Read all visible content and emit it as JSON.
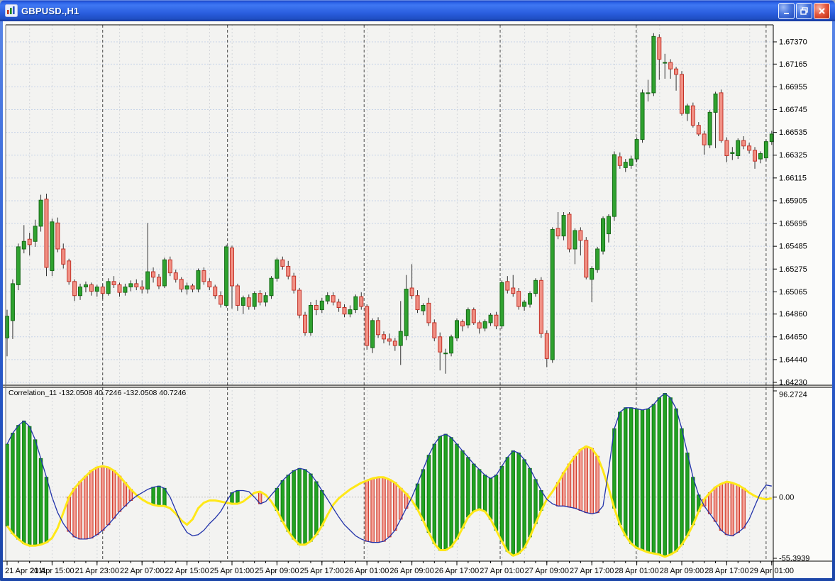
{
  "window": {
    "title": "GBPUSD.,H1",
    "controls": {
      "minimize": "minimize",
      "maximize": "restore",
      "close": "close"
    }
  },
  "colors": {
    "plot_bg": "#f3f3f1",
    "axis_bg": "#fbfbf9",
    "grid_h": "#c7d3e8",
    "grid_v": "#d3d6da",
    "day_separator": "#474747",
    "candle_up_fill": "#2fa22f",
    "candle_up_stroke": "#156915",
    "candle_down_fill": "#f19084",
    "candle_down_stroke": "#c43328",
    "wick": "#333333",
    "ind_up_fill": "#22a322",
    "ind_up_stroke": "#0e7d0e",
    "ind_down_fill": "#f4a096",
    "ind_down_stroke": "#cc3322",
    "line_yellow": "#ffe818",
    "line_blue": "#2233aa",
    "axis_text": "#000000"
  },
  "main_chart": {
    "price_axis_labels": [
      "1.67370",
      "1.67165",
      "1.66955",
      "1.66745",
      "1.66535",
      "1.66325",
      "1.66115",
      "1.65905",
      "1.65695",
      "1.65485",
      "1.65275",
      "1.65065",
      "1.64860",
      "1.64650",
      "1.64440",
      "1.64230"
    ],
    "time_axis_labels": [
      "21 Apr 2011",
      "21 Apr 15:00",
      "21 Apr 23:00",
      "22 Apr 07:00",
      "22 Apr 15:00",
      "25 Apr 01:00",
      "25 Apr 09:00",
      "25 Apr 17:00",
      "26 Apr 01:00",
      "26 Apr 09:00",
      "26 Apr 17:00",
      "27 Apr 01:00",
      "27 Apr 09:00",
      "27 Apr 17:00",
      "28 Apr 01:00",
      "28 Apr 09:00",
      "28 Apr 17:00",
      "29 Apr 01:00"
    ],
    "day_separator_bars": [
      17,
      39.2,
      63.5,
      87.7,
      111.9,
      135
    ],
    "candles": [
      [
        1.6464,
        1.649,
        1.6447,
        1.6484
      ],
      [
        1.648,
        1.6518,
        1.6463,
        1.6514
      ],
      [
        1.6513,
        1.6551,
        1.6508,
        1.6548
      ],
      [
        1.6546,
        1.6568,
        1.6542,
        1.6553
      ],
      [
        1.6555,
        1.6561,
        1.654,
        1.655
      ],
      [
        1.6553,
        1.6573,
        1.6548,
        1.6567
      ],
      [
        1.6567,
        1.6596,
        1.6562,
        1.6591
      ],
      [
        1.6592,
        1.6597,
        1.6521,
        1.6529
      ],
      [
        1.6526,
        1.6574,
        1.6521,
        1.6571
      ],
      [
        1.657,
        1.6575,
        1.6543,
        1.6546
      ],
      [
        1.6546,
        1.6551,
        1.6528,
        1.6532
      ],
      [
        1.6535,
        1.6537,
        1.6513,
        1.6516
      ],
      [
        1.6516,
        1.6518,
        1.6498,
        1.6503
      ],
      [
        1.6503,
        1.6514,
        1.6499,
        1.6511
      ],
      [
        1.6511,
        1.6516,
        1.6506,
        1.6513
      ],
      [
        1.6513,
        1.6515,
        1.6503,
        1.6507
      ],
      [
        1.6507,
        1.6513,
        1.6502,
        1.6511
      ],
      [
        1.6511,
        1.6514,
        1.65,
        1.6505
      ],
      [
        1.6505,
        1.6519,
        1.6503,
        1.6516
      ],
      [
        1.6516,
        1.6521,
        1.651,
        1.6513
      ],
      [
        1.6513,
        1.6515,
        1.6502,
        1.6506
      ],
      [
        1.6506,
        1.6514,
        1.6503,
        1.6511
      ],
      [
        1.6511,
        1.6517,
        1.6507,
        1.6514
      ],
      [
        1.6514,
        1.6518,
        1.6508,
        1.6511
      ],
      [
        1.6511,
        1.6517,
        1.6505,
        1.6509
      ],
      [
        1.6509,
        1.657,
        1.6505,
        1.6525
      ],
      [
        1.6525,
        1.6529,
        1.6515,
        1.652
      ],
      [
        1.652,
        1.6523,
        1.6509,
        1.6512
      ],
      [
        1.6512,
        1.6538,
        1.651,
        1.6536
      ],
      [
        1.6536,
        1.6539,
        1.6521,
        1.6524
      ],
      [
        1.6524,
        1.6527,
        1.6515,
        1.6518
      ],
      [
        1.6518,
        1.652,
        1.6506,
        1.6509
      ],
      [
        1.6509,
        1.6515,
        1.6504,
        1.6512
      ],
      [
        1.6512,
        1.6514,
        1.6506,
        1.6509
      ],
      [
        1.6509,
        1.6528,
        1.6506,
        1.6526
      ],
      [
        1.6526,
        1.6529,
        1.6513,
        1.6516
      ],
      [
        1.6516,
        1.6519,
        1.6508,
        1.6511
      ],
      [
        1.6511,
        1.6513,
        1.65,
        1.6503
      ],
      [
        1.6503,
        1.6507,
        1.6492,
        1.6495
      ],
      [
        1.6494,
        1.655,
        1.6492,
        1.6548
      ],
      [
        1.6547,
        1.6549,
        1.6491,
        1.6512
      ],
      [
        1.6512,
        1.6514,
        1.6489,
        1.6494
      ],
      [
        1.6494,
        1.6503,
        1.6486,
        1.6501
      ],
      [
        1.6501,
        1.6504,
        1.649,
        1.6493
      ],
      [
        1.6493,
        1.6507,
        1.649,
        1.6505
      ],
      [
        1.6505,
        1.6508,
        1.6494,
        1.6497
      ],
      [
        1.6497,
        1.6506,
        1.6493,
        1.6503
      ],
      [
        1.6503,
        1.6521,
        1.65,
        1.6519
      ],
      [
        1.6519,
        1.6538,
        1.6516,
        1.6536
      ],
      [
        1.6536,
        1.6539,
        1.6527,
        1.653
      ],
      [
        1.653,
        1.6535,
        1.6518,
        1.6521
      ],
      [
        1.6521,
        1.6524,
        1.6505,
        1.6508
      ],
      [
        1.6508,
        1.651,
        1.6482,
        1.6485
      ],
      [
        1.6485,
        1.6488,
        1.6466,
        1.6469
      ],
      [
        1.6469,
        1.6497,
        1.6466,
        1.6494
      ],
      [
        1.6494,
        1.6499,
        1.6485,
        1.649
      ],
      [
        1.649,
        1.6501,
        1.6487,
        1.6498
      ],
      [
        1.6498,
        1.6506,
        1.6495,
        1.6503
      ],
      [
        1.6503,
        1.6506,
        1.6494,
        1.6497
      ],
      [
        1.6497,
        1.65,
        1.6488,
        1.6492
      ],
      [
        1.6492,
        1.6495,
        1.6483,
        1.6486
      ],
      [
        1.6486,
        1.6494,
        1.6483,
        1.649
      ],
      [
        1.649,
        1.6504,
        1.6487,
        1.6502
      ],
      [
        1.6502,
        1.6506,
        1.649,
        1.6493
      ],
      [
        1.6493,
        1.6495,
        1.6453,
        1.6457
      ],
      [
        1.6455,
        1.6482,
        1.645,
        1.648
      ],
      [
        1.648,
        1.6483,
        1.6464,
        1.6467
      ],
      [
        1.6467,
        1.647,
        1.6459,
        1.6463
      ],
      [
        1.6463,
        1.6468,
        1.6457,
        1.6461
      ],
      [
        1.6461,
        1.6464,
        1.6452,
        1.6457
      ],
      [
        1.6457,
        1.6498,
        1.6439,
        1.647
      ],
      [
        1.6466,
        1.6522,
        1.6462,
        1.6509
      ],
      [
        1.651,
        1.6532,
        1.65,
        1.6503
      ],
      [
        1.6503,
        1.6508,
        1.6487,
        1.649
      ],
      [
        1.6489,
        1.6496,
        1.6485,
        1.6494
      ],
      [
        1.6496,
        1.6501,
        1.6475,
        1.6478
      ],
      [
        1.6478,
        1.6481,
        1.6461,
        1.6464
      ],
      [
        1.6465,
        1.6469,
        1.6434,
        1.6451
      ],
      [
        1.645,
        1.6454,
        1.6431,
        1.645
      ],
      [
        1.645,
        1.6467,
        1.6447,
        1.6465
      ],
      [
        1.6464,
        1.6482,
        1.6461,
        1.648
      ],
      [
        1.6479,
        1.6481,
        1.647,
        1.6475
      ],
      [
        1.6476,
        1.6492,
        1.6473,
        1.649
      ],
      [
        1.649,
        1.6492,
        1.6476,
        1.6478
      ],
      [
        1.6478,
        1.648,
        1.6468,
        1.6473
      ],
      [
        1.6473,
        1.6481,
        1.647,
        1.6479
      ],
      [
        1.6478,
        1.6487,
        1.6475,
        1.6485
      ],
      [
        1.6485,
        1.6488,
        1.6472,
        1.6475
      ],
      [
        1.6475,
        1.6517,
        1.6472,
        1.6515
      ],
      [
        1.6516,
        1.6521,
        1.6505,
        1.6508
      ],
      [
        1.651,
        1.6522,
        1.6502,
        1.6505
      ],
      [
        1.6507,
        1.651,
        1.649,
        1.6493
      ],
      [
        1.6493,
        1.6499,
        1.6489,
        1.6497
      ],
      [
        1.6495,
        1.6507,
        1.6492,
        1.6505
      ],
      [
        1.6505,
        1.6519,
        1.6502,
        1.6517
      ],
      [
        1.6517,
        1.652,
        1.6464,
        1.6468
      ],
      [
        1.6468,
        1.6471,
        1.6437,
        1.6445
      ],
      [
        1.6444,
        1.6566,
        1.6441,
        1.6564
      ],
      [
        1.6565,
        1.658,
        1.6555,
        1.6558
      ],
      [
        1.6558,
        1.658,
        1.6554,
        1.6577
      ],
      [
        1.6578,
        1.658,
        1.6543,
        1.6546
      ],
      [
        1.6546,
        1.6565,
        1.6532,
        1.6563
      ],
      [
        1.6563,
        1.6566,
        1.654,
        1.6554
      ],
      [
        1.6554,
        1.6557,
        1.6518,
        1.652
      ],
      [
        1.6518,
        1.653,
        1.6497,
        1.6528
      ],
      [
        1.6527,
        1.6548,
        1.6524,
        1.6546
      ],
      [
        1.6544,
        1.6576,
        1.6541,
        1.6574
      ],
      [
        1.656,
        1.6578,
        1.6552,
        1.6576
      ],
      [
        1.6576,
        1.6636,
        1.6572,
        1.6633
      ],
      [
        1.6631,
        1.6635,
        1.662,
        1.6623
      ],
      [
        1.6621,
        1.6629,
        1.6617,
        1.6626
      ],
      [
        1.6623,
        1.6632,
        1.662,
        1.6629
      ],
      [
        1.6629,
        1.6649,
        1.6626,
        1.6647
      ],
      [
        1.6647,
        1.6693,
        1.6644,
        1.669
      ],
      [
        1.669,
        1.6702,
        1.6682,
        1.669
      ],
      [
        1.669,
        1.6745,
        1.6687,
        1.6742
      ],
      [
        1.6741,
        1.6744,
        1.6702,
        1.6721
      ],
      [
        1.6718,
        1.6726,
        1.6703,
        1.6718
      ],
      [
        1.6718,
        1.6721,
        1.6703,
        1.6712
      ],
      [
        1.6712,
        1.6714,
        1.6692,
        1.6707
      ],
      [
        1.6707,
        1.671,
        1.6669,
        1.6671
      ],
      [
        1.6671,
        1.668,
        1.6664,
        1.6678
      ],
      [
        1.6678,
        1.6681,
        1.6658,
        1.666
      ],
      [
        1.666,
        1.6663,
        1.665,
        1.6652
      ],
      [
        1.6652,
        1.6655,
        1.6633,
        1.6642
      ],
      [
        1.6642,
        1.6674,
        1.6639,
        1.6672
      ],
      [
        1.6672,
        1.6691,
        1.6639,
        1.6689
      ],
      [
        1.669,
        1.6693,
        1.6644,
        1.6646
      ],
      [
        1.6646,
        1.6649,
        1.6626,
        1.6632
      ],
      [
        1.6634,
        1.664,
        1.6628,
        1.6635
      ],
      [
        1.6632,
        1.6648,
        1.6629,
        1.6646
      ],
      [
        1.6646,
        1.665,
        1.6638,
        1.6641
      ],
      [
        1.6641,
        1.6644,
        1.6634,
        1.6637
      ],
      [
        1.6637,
        1.664,
        1.662,
        1.6627
      ],
      [
        1.6629,
        1.6636,
        1.6625,
        1.6634
      ],
      [
        1.663,
        1.6647,
        1.6627,
        1.6645
      ],
      [
        1.6645,
        1.6655,
        1.6642,
        1.6652
      ]
    ]
  },
  "indicator": {
    "label": "Correlation_11 -132.0508 40.7246 -132.0508 40.7246",
    "axis_labels": [
      "96.2724",
      "0.00",
      "-55.3939"
    ],
    "blue": [
      48,
      58,
      65,
      69,
      64,
      52,
      35,
      18,
      0,
      -14,
      -24,
      -31,
      -36,
      -38,
      -38,
      -37,
      -34,
      -30,
      -25,
      -19,
      -13,
      -8,
      -3,
      1,
      4,
      7,
      9,
      10,
      8,
      0,
      -12,
      -24,
      -32,
      -35,
      -34,
      -30,
      -24,
      -19,
      -13,
      -4,
      4,
      6,
      6,
      5,
      0,
      -6,
      -4,
      2,
      8,
      15,
      20,
      24,
      26,
      25,
      21,
      14,
      6,
      -2,
      -10,
      -18,
      -25,
      -30,
      -35,
      -38,
      -40,
      -41,
      -41,
      -40,
      -36,
      -30,
      -20,
      -10,
      0,
      12,
      25,
      38,
      48,
      55,
      57,
      54,
      48,
      42,
      36,
      30,
      25,
      20,
      17,
      20,
      28,
      36,
      42,
      40,
      34,
      26,
      16,
      6,
      -2,
      -6,
      -8,
      -8,
      -9,
      -10,
      -12,
      -14,
      -15,
      -14,
      -8,
      25,
      62,
      77,
      81,
      81,
      80,
      79,
      80,
      84,
      90,
      94,
      90,
      80,
      62,
      40,
      18,
      2,
      -8,
      -15,
      -22,
      -30,
      -34,
      -35,
      -32,
      -28,
      -20,
      -8,
      4,
      11,
      10
    ],
    "yellow": [
      -26,
      -33,
      -38,
      -42,
      -44,
      -44,
      -43,
      -41,
      -37,
      -28,
      -14,
      0,
      8,
      14,
      19,
      24,
      27,
      28,
      27,
      24,
      19,
      13,
      7,
      2,
      -2,
      -5,
      -7,
      -8,
      -8,
      -10,
      -15,
      -21,
      -25,
      -20,
      -10,
      -5,
      -3,
      -3,
      -4,
      -5,
      -6,
      -6,
      -4,
      0,
      4,
      5,
      2,
      -4,
      -12,
      -22,
      -31,
      -38,
      -43,
      -43,
      -40,
      -34,
      -26,
      -16,
      -7,
      -1,
      3,
      7,
      10,
      13,
      15,
      17,
      18,
      18,
      16,
      13,
      8,
      3,
      -3,
      -11,
      -21,
      -32,
      -42,
      -48,
      -48,
      -45,
      -38,
      -28,
      -18,
      -13,
      -11,
      -13,
      -20,
      -30,
      -40,
      -49,
      -53,
      -51,
      -46,
      -36,
      -24,
      -12,
      -2,
      5,
      13,
      22,
      30,
      37,
      43,
      46,
      44,
      37,
      24,
      8,
      -10,
      -25,
      -35,
      -42,
      -46,
      -48,
      -50,
      -51,
      -52,
      -54,
      -52,
      -49,
      -43,
      -35,
      -25,
      -13,
      -2,
      4,
      9,
      12,
      14,
      13,
      11,
      8,
      4,
      1,
      -1,
      -2,
      -1
    ],
    "hist_regions": [
      [
        0,
        7,
        "green"
      ],
      [
        11,
        22,
        "red"
      ],
      [
        26,
        28,
        "green"
      ],
      [
        40,
        41,
        "green"
      ],
      [
        45,
        45,
        "red"
      ],
      [
        48,
        56,
        "green"
      ],
      [
        64,
        71,
        "red"
      ],
      [
        73,
        95,
        "green"
      ],
      [
        98,
        105,
        "red"
      ],
      [
        108,
        123,
        "green"
      ],
      [
        124,
        131,
        "red"
      ]
    ],
    "scale_max": 96.2724,
    "scale_min": -55.3939
  }
}
